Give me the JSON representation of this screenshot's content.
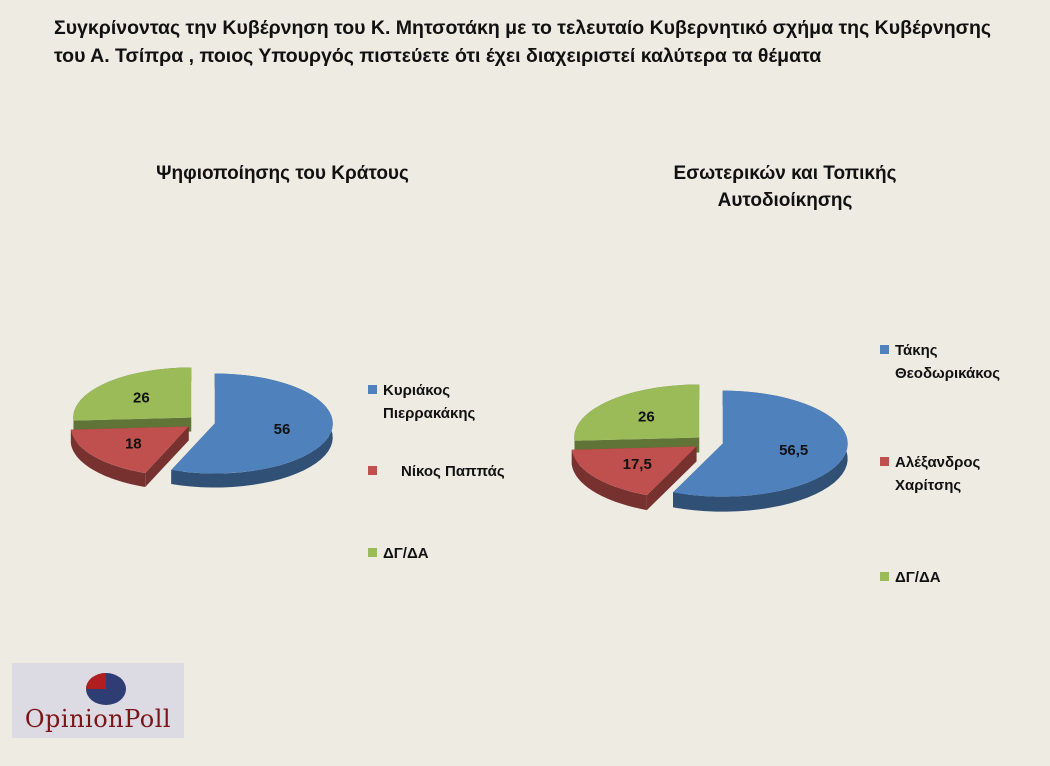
{
  "title": "Συγκρίνοντας την Κυβέρνηση του Κ. Μητσοτάκη με το τελευταίο Κυβερνητικό σχήμα της Κυβέρνησης  του Α. Τσίπρα , ποιος Υπουργός πιστεύετε ότι έχει διαχειριστεί καλύτερα τα θέματα",
  "colors": {
    "blue": "#4f81bd",
    "red": "#c0504d",
    "green": "#9bbb59",
    "background": "#eeebe2"
  },
  "logo": {
    "text": "OpinionPoll"
  },
  "chart_data": [
    {
      "type": "pie",
      "title": "Ψηφιοποίησης του Κράτους",
      "categories": [
        "Κυριάκος Πιερρακάκης",
        "Νίκος Παππάς",
        "ΔΓ/ΔΑ"
      ],
      "values": [
        56,
        18,
        26
      ],
      "value_labels": [
        "56",
        "18",
        "26"
      ],
      "legend_lines": [
        [
          "Κυριάκος",
          "Πιερρακάκης"
        ],
        [
          "Νίκος Παππάς"
        ],
        [
          "ΔΓ/ΔΑ"
        ]
      ],
      "colors": [
        "#4f81bd",
        "#c0504d",
        "#9bbb59"
      ],
      "legend": "right"
    },
    {
      "type": "pie",
      "title": "Εσωτερικών και Τοπικής Αυτοδιοίκησης",
      "categories": [
        "Τάκης Θεοδωρικάκος",
        "Αλέξανδρος Χαρίτσης",
        "ΔΓ/ΔΑ"
      ],
      "values": [
        56.5,
        17.5,
        26
      ],
      "value_labels": [
        "56,5",
        "17,5",
        "26"
      ],
      "legend_lines": [
        [
          "Τάκης",
          "Θεοδωρικάκος"
        ],
        [
          "Αλέξανδρος",
          "Χαρίτσης"
        ],
        [
          "ΔΓ/ΔΑ"
        ]
      ],
      "colors": [
        "#4f81bd",
        "#c0504d",
        "#9bbb59"
      ],
      "legend": "right"
    }
  ]
}
